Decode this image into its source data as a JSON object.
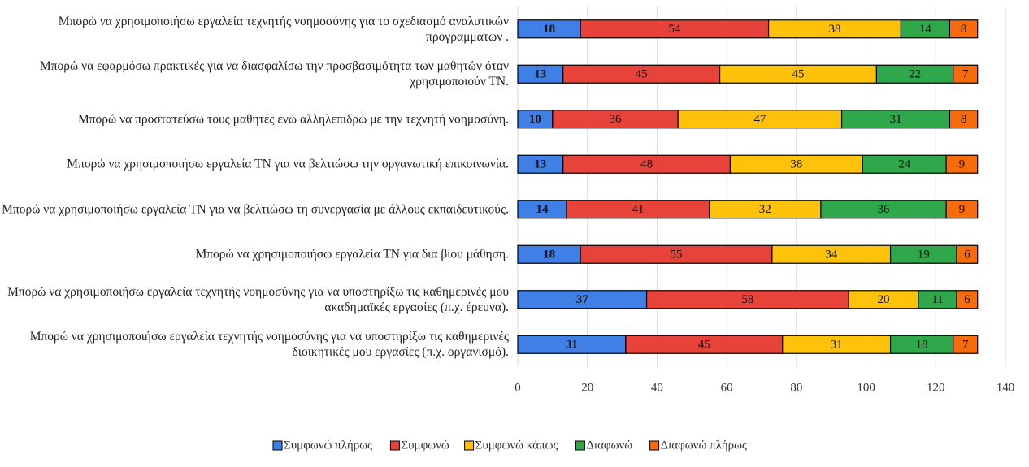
{
  "chart_data": {
    "type": "stacked_barh",
    "categories": [
      "Μπορώ να χρησιμοποιήσω εργαλεία τεχνητής νοημοσύνης για το σχεδιασμό αναλυτικών προγραμμάτων .",
      "Μπορώ να εφαρμόσω πρακτικές για να διασφαλίσω την προσβασιμότητα των μαθητών όταν χρησιμοποιούν ΤΝ.",
      "Μπορώ να προστατεύσω τους μαθητές ενώ αλληλεπιδρώ με την τεχνητή νοημοσύνη.",
      "Μπορώ να χρησιμοποιήσω εργαλεία ΤΝ για να βελτιώσω την οργανωτική επικοινωνία.",
      "Μπορώ να χρησιμοποιήσω εργαλεία ΤΝ για να βελτιώσω τη συνεργασία με άλλους εκπαιδευτικούς.",
      "Μπορώ να χρησιμοποιήσω εργαλεία ΤΝ για δια βίου μάθηση.",
      "Μπορώ να χρησιμοποιήσω εργαλεία τεχνητής νοημοσύνης για να υποστηρίξω τις καθημερινές μου ακαδημαϊκές εργασίες (π.χ. έρευνα).",
      "Μπορώ να χρησιμοποιήσω εργαλεία τεχνητής νοημοσύνης για να υποστηρίξω τις καθημερινές διοικητικές μου εργασίες (π.χ. οργανισμό)."
    ],
    "series": [
      {
        "name": "Συμφωνώ πλήρως",
        "color": "#3f7fe6",
        "values": [
          18,
          13,
          10,
          13,
          14,
          18,
          37,
          31
        ]
      },
      {
        "name": "Συμφωνώ",
        "color": "#e8433a",
        "values": [
          54,
          45,
          36,
          48,
          41,
          55,
          58,
          45
        ]
      },
      {
        "name": "Συμφωνώ κάπως",
        "color": "#fec20a",
        "values": [
          38,
          45,
          47,
          38,
          32,
          34,
          20,
          31
        ]
      },
      {
        "name": "Διαφωνώ",
        "color": "#2fa84c",
        "values": [
          14,
          22,
          31,
          24,
          36,
          19,
          11,
          18
        ]
      },
      {
        "name": "Διαφωνώ πλήρως",
        "color": "#f76b0c",
        "values": [
          8,
          7,
          8,
          9,
          9,
          6,
          6,
          7
        ]
      }
    ],
    "xlim": [
      0,
      140
    ],
    "xticks": [
      0,
      20,
      40,
      60,
      80,
      100,
      120,
      140
    ],
    "grid": true,
    "legend": "bottom"
  }
}
